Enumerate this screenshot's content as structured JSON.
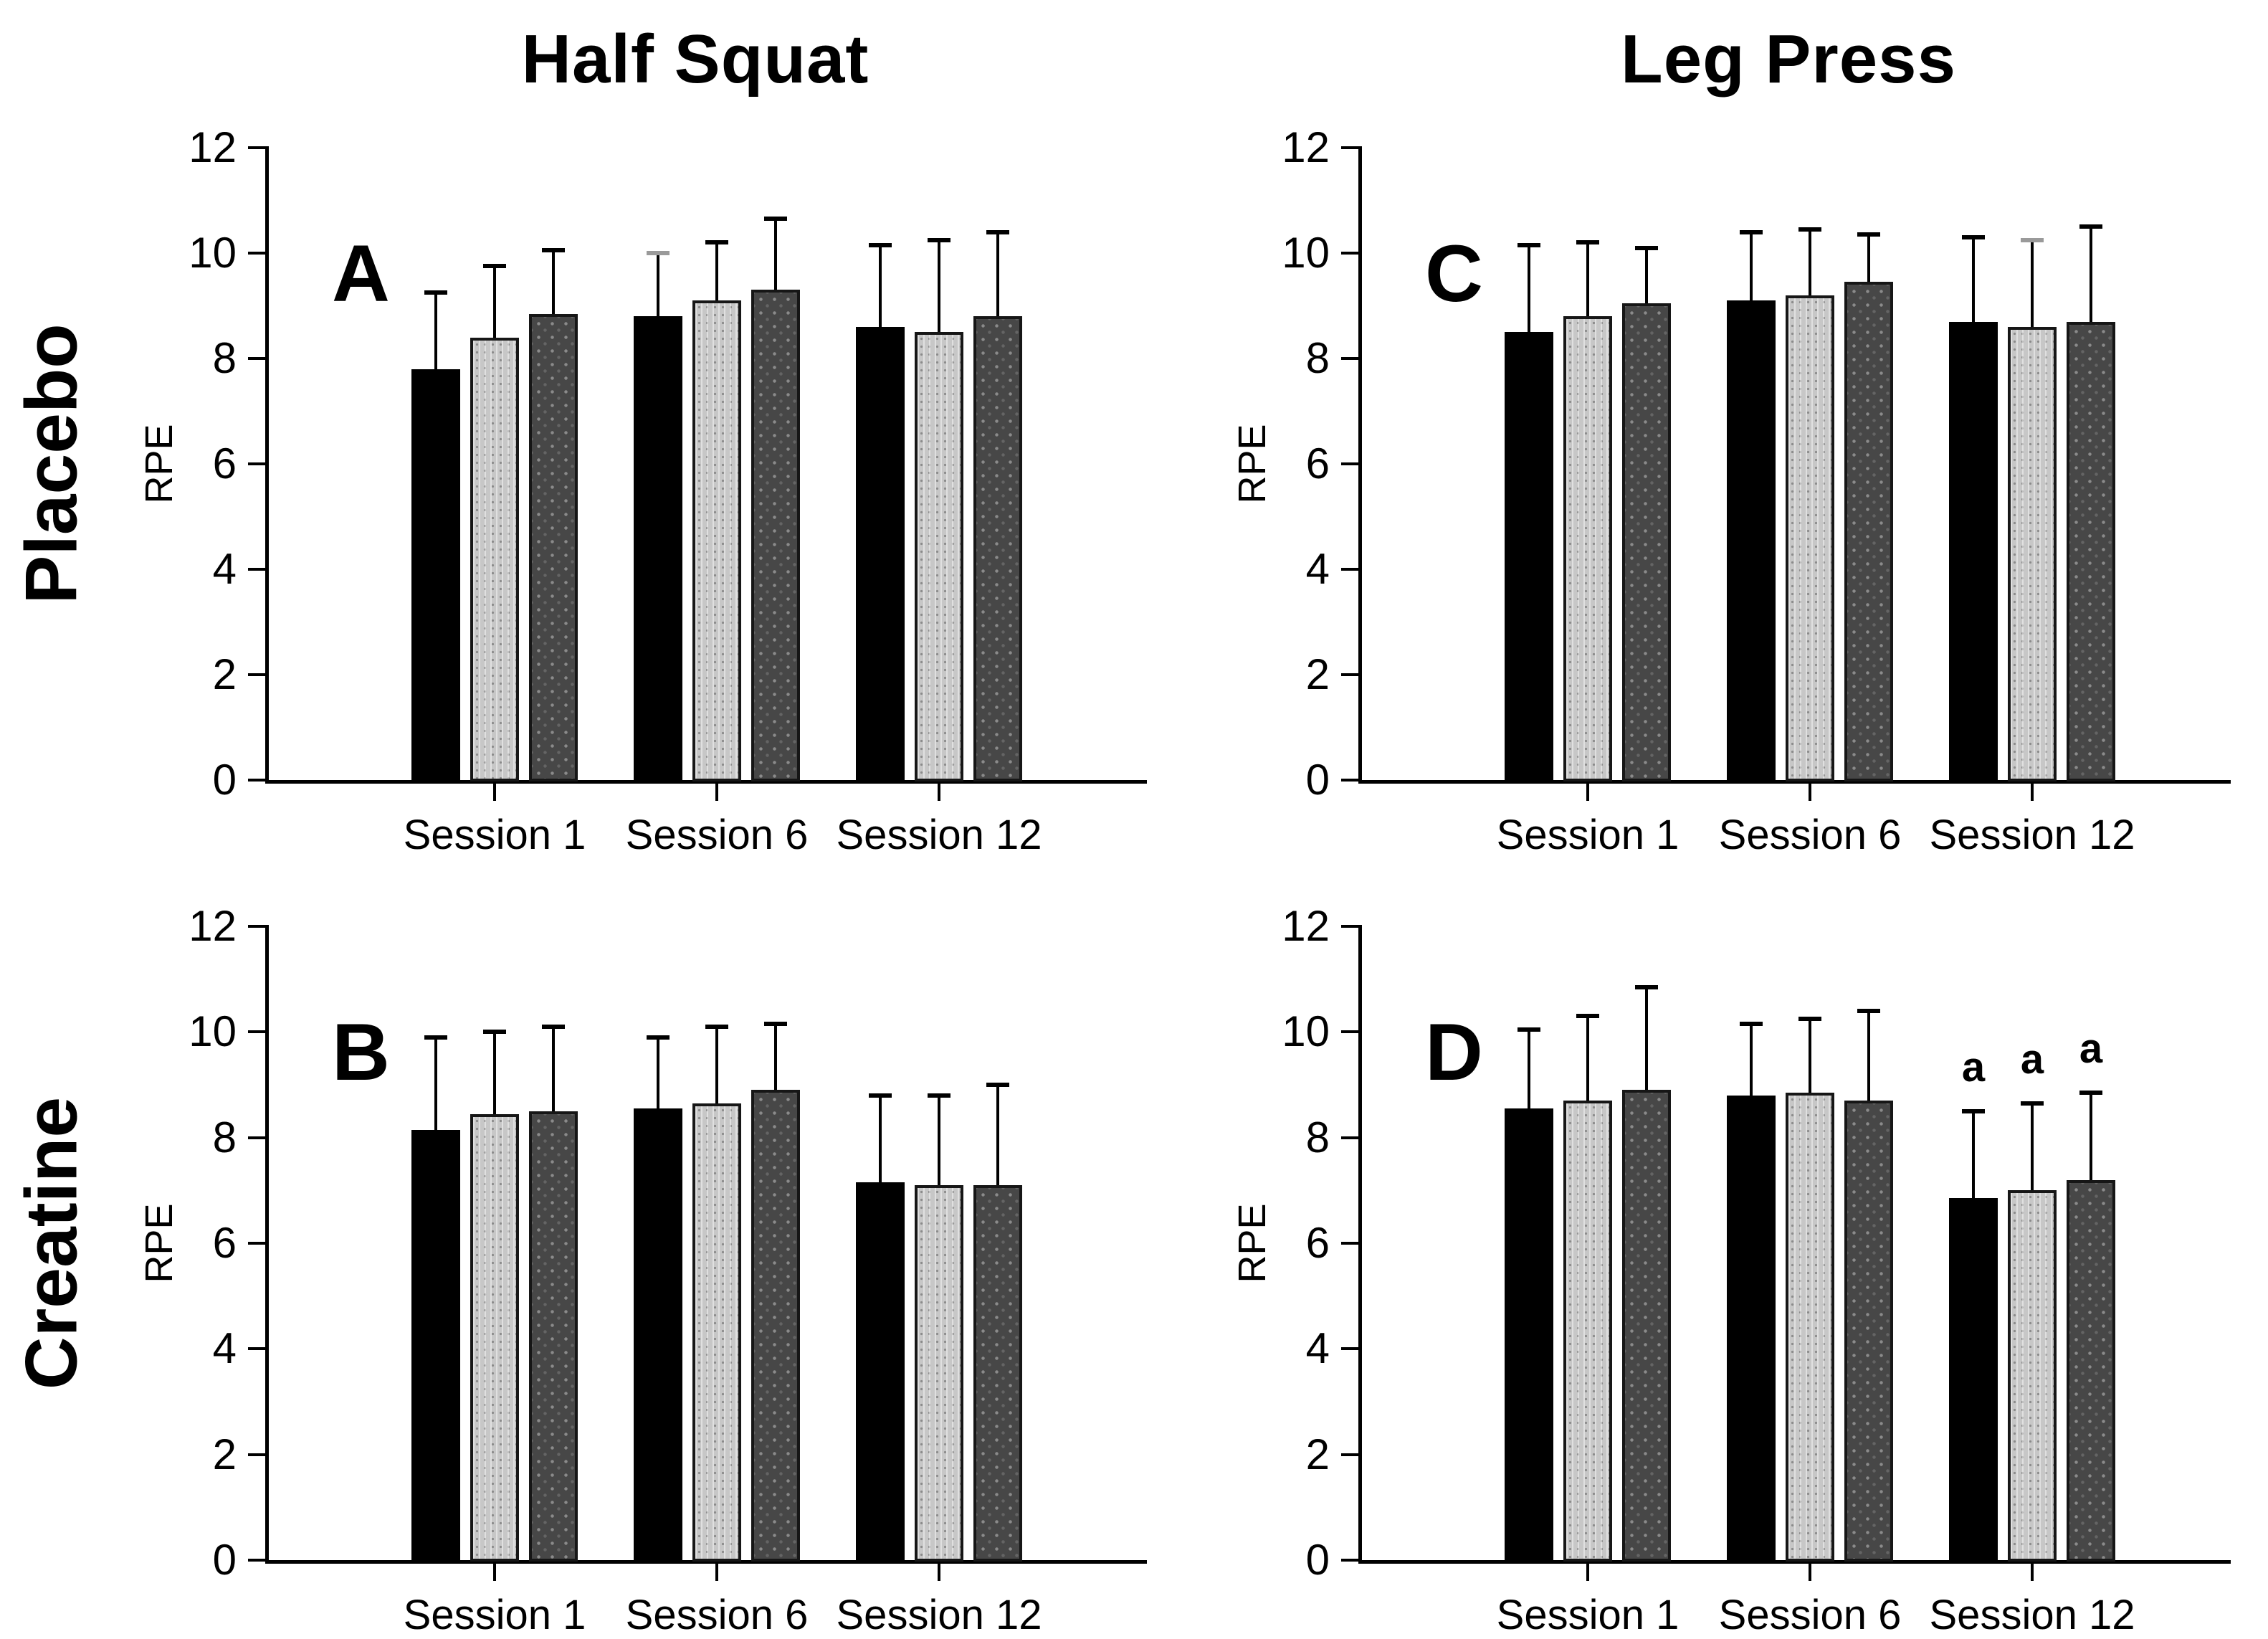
{
  "figure": {
    "background": "#ffffff",
    "columns": [
      {
        "title": "Half Squat"
      },
      {
        "title": "Leg Press"
      }
    ],
    "rows": [
      {
        "label": "Placebo"
      },
      {
        "label": "Creatine"
      }
    ]
  },
  "colors": {
    "set1_black": "#000000",
    "set2_light_gray": "#c7c7c7",
    "set3_dark_gray": "#474747",
    "axis": "#000000",
    "gray_error_cap": "#9a9a9a"
  },
  "chart_data": [
    {
      "type": "bar",
      "panel": "A",
      "row_group": "Placebo",
      "column_title": "Half Squat",
      "ylabel": "RPE",
      "ylim": [
        0,
        12
      ],
      "yticks": [
        0,
        2,
        4,
        6,
        8,
        10,
        12
      ],
      "grid": false,
      "legend": "none",
      "categories": [
        "Session 1",
        "Session 6",
        "Session 12"
      ],
      "series": [
        {
          "name": "set 1 (black)",
          "style": "black",
          "values": [
            7.8,
            8.8,
            8.6
          ],
          "err_up": [
            1.45,
            1.2,
            1.55
          ]
        },
        {
          "name": "set 2 (light gray)",
          "style": "light-gray",
          "values": [
            8.4,
            9.1,
            8.5
          ],
          "err_up": [
            1.35,
            1.1,
            1.75
          ]
        },
        {
          "name": "set 3 (dark gray)",
          "style": "dark-gray",
          "values": [
            8.85,
            9.3,
            8.8
          ],
          "err_up": [
            1.2,
            1.35,
            1.6
          ]
        }
      ],
      "cap_color_overrides": [
        {
          "category_index": 1,
          "series_index": 0,
          "color": "#9a9a9a"
        }
      ],
      "annotations": []
    },
    {
      "type": "bar",
      "panel": "B",
      "row_group": "Creatine",
      "column_title": "Half Squat",
      "ylabel": "RPE",
      "ylim": [
        0,
        12
      ],
      "yticks": [
        0,
        2,
        4,
        6,
        8,
        10,
        12
      ],
      "grid": false,
      "legend": "none",
      "categories": [
        "Session 1",
        "Session 6",
        "Session 12"
      ],
      "series": [
        {
          "name": "set 1 (black)",
          "style": "black",
          "values": [
            8.15,
            8.55,
            7.15
          ],
          "err_up": [
            1.75,
            1.35,
            1.65
          ]
        },
        {
          "name": "set 2 (light gray)",
          "style": "light-gray",
          "values": [
            8.45,
            8.65,
            7.1
          ],
          "err_up": [
            1.55,
            1.45,
            1.7
          ]
        },
        {
          "name": "set 3 (dark gray)",
          "style": "dark-gray",
          "values": [
            8.5,
            8.9,
            7.1
          ],
          "err_up": [
            1.6,
            1.25,
            1.9
          ]
        }
      ],
      "cap_color_overrides": [],
      "annotations": []
    },
    {
      "type": "bar",
      "panel": "C",
      "row_group": "Placebo",
      "column_title": "Leg Press",
      "ylabel": "RPE",
      "ylim": [
        0,
        12
      ],
      "yticks": [
        0,
        2,
        4,
        6,
        8,
        10,
        12
      ],
      "grid": false,
      "legend": "none",
      "categories": [
        "Session 1",
        "Session 6",
        "Session 12"
      ],
      "series": [
        {
          "name": "set 1 (black)",
          "style": "black",
          "values": [
            8.5,
            9.1,
            8.7
          ],
          "err_up": [
            1.65,
            1.3,
            1.6
          ]
        },
        {
          "name": "set 2 (light gray)",
          "style": "light-gray",
          "values": [
            8.8,
            9.2,
            8.6
          ],
          "err_up": [
            1.4,
            1.25,
            1.65
          ]
        },
        {
          "name": "set 3 (dark gray)",
          "style": "dark-gray",
          "values": [
            9.05,
            9.45,
            8.7
          ],
          "err_up": [
            1.05,
            0.9,
            1.8
          ]
        }
      ],
      "cap_color_overrides": [
        {
          "category_index": 2,
          "series_index": 1,
          "color": "#9a9a9a"
        }
      ],
      "annotations": []
    },
    {
      "type": "bar",
      "panel": "D",
      "row_group": "Creatine",
      "column_title": "Leg Press",
      "ylabel": "RPE",
      "ylim": [
        0,
        12
      ],
      "yticks": [
        0,
        2,
        4,
        6,
        8,
        10,
        12
      ],
      "grid": false,
      "legend": "none",
      "categories": [
        "Session 1",
        "Session 6",
        "Session 12"
      ],
      "series": [
        {
          "name": "set 1 (black)",
          "style": "black",
          "values": [
            8.55,
            8.8,
            6.85
          ],
          "err_up": [
            1.5,
            1.35,
            1.65
          ]
        },
        {
          "name": "set 2 (light gray)",
          "style": "light-gray",
          "values": [
            8.7,
            8.85,
            7.0
          ],
          "err_up": [
            1.6,
            1.4,
            1.65
          ]
        },
        {
          "name": "set 3 (dark gray)",
          "style": "dark-gray",
          "values": [
            8.9,
            8.7,
            7.2
          ],
          "err_up": [
            1.95,
            1.7,
            1.65
          ]
        }
      ],
      "cap_color_overrides": [],
      "annotations": [
        {
          "text": "a",
          "category_index": 2,
          "series_index": 0
        },
        {
          "text": "a",
          "category_index": 2,
          "series_index": 1
        },
        {
          "text": "a",
          "category_index": 2,
          "series_index": 2
        }
      ]
    }
  ]
}
